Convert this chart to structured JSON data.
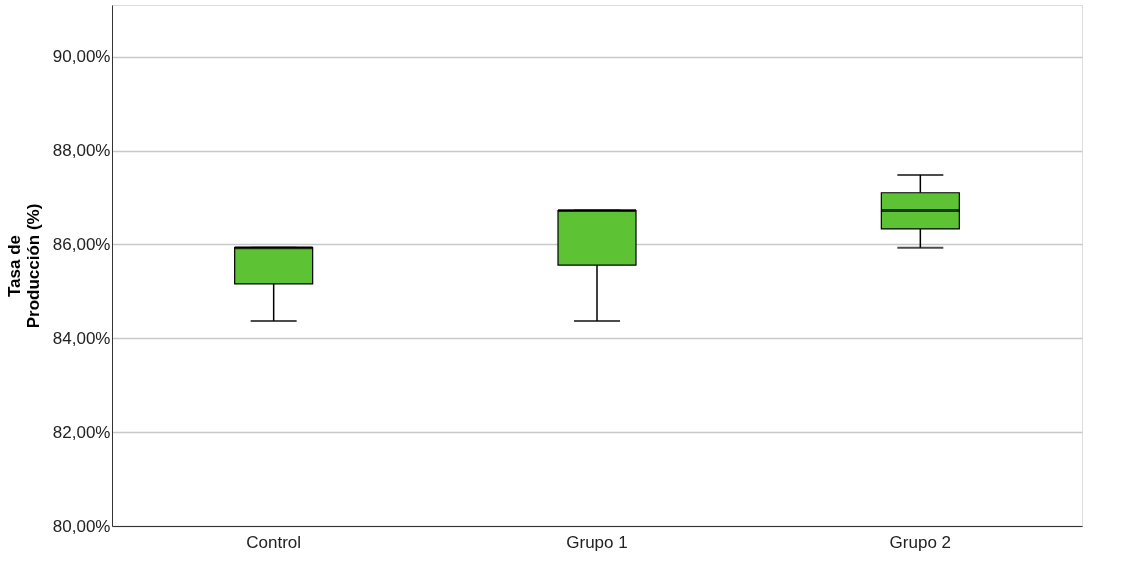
{
  "chart_data": {
    "type": "box",
    "ylabel": "Tasa de Producción (%)",
    "categories": [
      "Control",
      "Grupo 1",
      "Grupo 2"
    ],
    "boxes": [
      {
        "low": 84.37,
        "q1": 85.16,
        "median": 85.93,
        "q3": 85.93,
        "high": 85.93
      },
      {
        "low": 84.37,
        "q1": 85.56,
        "median": 86.72,
        "q3": 86.72,
        "high": 86.72
      },
      {
        "low": 85.93,
        "q1": 86.33,
        "median": 86.72,
        "q3": 87.1,
        "high": 87.48
      }
    ],
    "color": "#5dc234",
    "ylim": [
      80,
      91.1
    ],
    "yticks": [
      {
        "value": 80,
        "label": "80,00%"
      },
      {
        "value": 82,
        "label": "82,00%"
      },
      {
        "value": 84,
        "label": "84,00%"
      },
      {
        "value": 86,
        "label": "86,00%"
      },
      {
        "value": 88,
        "label": "88,00%"
      },
      {
        "value": 90,
        "label": "90,00%"
      }
    ],
    "grid": "y"
  }
}
